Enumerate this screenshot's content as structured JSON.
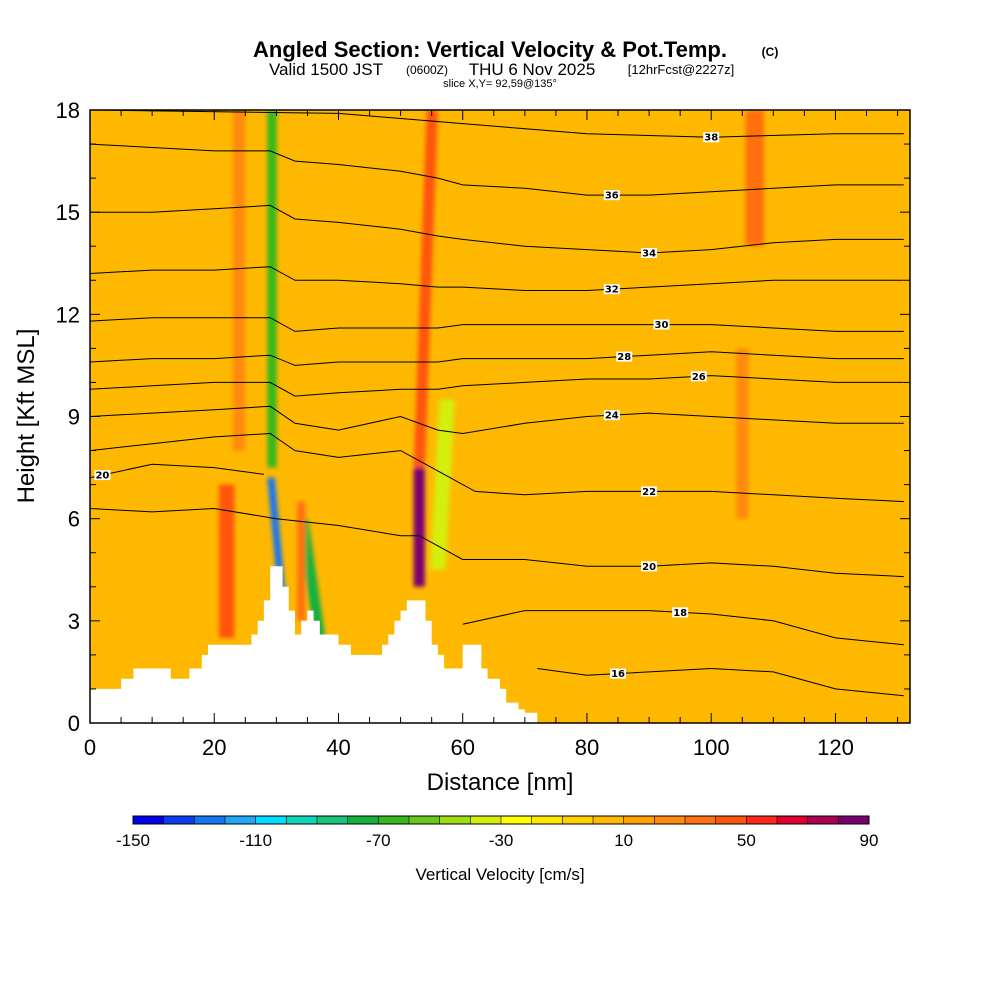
{
  "chart_data": {
    "type": "heatmap",
    "title": "Angled Section: Vertical Velocity & Pot.Temp.",
    "title_units": "(C)",
    "subtitle_valid": "Valid 1500 JST",
    "subtitle_utc": "(0600Z)",
    "subtitle_date": "THU 6 Nov 2025",
    "subtitle_fcst": "[12hrFcst@2227z]",
    "slice_info": "slice X,Y= 92,59@135°",
    "xlabel": "Distance [nm]",
    "ylabel": "Height [Kft MSL]",
    "xlim": [
      0,
      132
    ],
    "ylim": [
      0,
      18
    ],
    "x_ticks": [
      0,
      20,
      40,
      60,
      80,
      100,
      120
    ],
    "y_ticks": [
      0,
      3,
      6,
      9,
      12,
      15,
      18
    ],
    "background_velocity_cms": 0,
    "terrain_profile": {
      "x": [
        0,
        5,
        7,
        9,
        12,
        13,
        15,
        16,
        18,
        19,
        21,
        26,
        27,
        28,
        29,
        31,
        32,
        33,
        34,
        35,
        36,
        37,
        38,
        40,
        42,
        44,
        46,
        47,
        48,
        49,
        50,
        51,
        53,
        54,
        55,
        56,
        57,
        58,
        60,
        61,
        63,
        64,
        66,
        67,
        69,
        70,
        71,
        72
      ],
      "h": [
        1.0,
        1.3,
        1.6,
        1.6,
        1.6,
        1.3,
        1.3,
        1.6,
        2.0,
        2.3,
        2.3,
        2.6,
        3.0,
        3.6,
        4.6,
        4.0,
        3.3,
        2.6,
        3.0,
        3.3,
        3.0,
        2.6,
        2.6,
        2.3,
        2.0,
        2.0,
        2.0,
        2.3,
        2.6,
        3.0,
        3.3,
        3.6,
        3.6,
        3.0,
        2.3,
        2.0,
        1.6,
        1.6,
        2.3,
        2.3,
        1.6,
        1.3,
        1.0,
        0.6,
        0.4,
        0.3,
        0.3,
        0.0
      ]
    },
    "vertical_velocity_features": [
      {
        "x": 22,
        "y0": 2.5,
        "y1": 7,
        "width": 2.5,
        "value": 45
      },
      {
        "x": 24,
        "y0": 8,
        "y1": 18,
        "width": 2.0,
        "value": 25
      },
      {
        "x": 29.3,
        "y0": 7.5,
        "y1": 18,
        "width": 1.5,
        "value": -70,
        "tilt": 0.0
      },
      {
        "x": 31,
        "y0": 3.5,
        "y1": 7.2,
        "width": 1.2,
        "value": -125,
        "tilt": -0.5
      },
      {
        "x": 37,
        "y0": 2.5,
        "y1": 6.0,
        "width": 1.8,
        "value": -80,
        "tilt": -0.8
      },
      {
        "x": 34,
        "y0": 3.0,
        "y1": 6.5,
        "width": 1.3,
        "value": 30
      },
      {
        "x": 53,
        "y0": 4.0,
        "y1": 7.5,
        "width": 1.8,
        "value": 85
      },
      {
        "x": 53,
        "y0": 7.5,
        "y1": 18,
        "width": 1.8,
        "value": 40,
        "tilt": 0.2
      },
      {
        "x": 56,
        "y0": 4.5,
        "y1": 9.5,
        "width": 2.5,
        "value": -35,
        "tilt": 0.3
      },
      {
        "x": 107,
        "y0": 14,
        "y1": 18,
        "width": 3.0,
        "value": 30
      },
      {
        "x": 105,
        "y0": 6,
        "y1": 11,
        "width": 2.0,
        "value": 20
      }
    ],
    "isentropes": [
      {
        "label": "16",
        "label_x": 85,
        "pts": [
          [
            72,
            1.6
          ],
          [
            80,
            1.4
          ],
          [
            90,
            1.5
          ],
          [
            100,
            1.6
          ],
          [
            110,
            1.5
          ],
          [
            120,
            1.0
          ],
          [
            131,
            0.8
          ]
        ]
      },
      {
        "label": "18",
        "label_x": 95,
        "pts": [
          [
            60,
            2.9
          ],
          [
            70,
            3.3
          ],
          [
            80,
            3.3
          ],
          [
            90,
            3.3
          ],
          [
            100,
            3.2
          ],
          [
            110,
            3.0
          ],
          [
            120,
            2.5
          ],
          [
            131,
            2.3
          ]
        ]
      },
      {
        "label": "20",
        "label_x": 90,
        "pts": [
          [
            0,
            6.3
          ],
          [
            10,
            6.2
          ],
          [
            20,
            6.3
          ],
          [
            30,
            6.0
          ],
          [
            40,
            5.8
          ],
          [
            50,
            5.5
          ],
          [
            53,
            5.5
          ],
          [
            60,
            4.8
          ],
          [
            70,
            4.8
          ],
          [
            80,
            4.6
          ],
          [
            90,
            4.6
          ],
          [
            100,
            4.7
          ],
          [
            110,
            4.6
          ],
          [
            120,
            4.4
          ],
          [
            131,
            4.3
          ]
        ]
      },
      {
        "label": "20",
        "label_x": 2,
        "pts": [
          [
            0,
            7.2
          ],
          [
            10,
            7.6
          ],
          [
            20,
            7.5
          ],
          [
            28,
            7.3
          ]
        ]
      },
      {
        "label": "22",
        "label_x": 90,
        "pts": [
          [
            0,
            8.0
          ],
          [
            10,
            8.2
          ],
          [
            20,
            8.4
          ],
          [
            29,
            8.5
          ],
          [
            33,
            8.0
          ],
          [
            40,
            7.8
          ],
          [
            50,
            8.0
          ],
          [
            55,
            7.5
          ],
          [
            62,
            6.8
          ],
          [
            70,
            6.7
          ],
          [
            80,
            6.8
          ],
          [
            90,
            6.8
          ],
          [
            100,
            6.8
          ],
          [
            110,
            6.7
          ],
          [
            120,
            6.6
          ],
          [
            131,
            6.5
          ]
        ]
      },
      {
        "label": "24",
        "label_x": 84,
        "pts": [
          [
            0,
            9.0
          ],
          [
            10,
            9.1
          ],
          [
            20,
            9.2
          ],
          [
            29,
            9.3
          ],
          [
            33,
            8.8
          ],
          [
            40,
            8.6
          ],
          [
            50,
            9.0
          ],
          [
            56,
            8.6
          ],
          [
            60,
            8.5
          ],
          [
            70,
            8.8
          ],
          [
            80,
            9.0
          ],
          [
            90,
            9.1
          ],
          [
            100,
            9.0
          ],
          [
            110,
            8.9
          ],
          [
            120,
            8.8
          ],
          [
            131,
            8.8
          ]
        ]
      },
      {
        "label": "26",
        "label_x": 98,
        "pts": [
          [
            0,
            9.8
          ],
          [
            10,
            9.9
          ],
          [
            20,
            10.0
          ],
          [
            29,
            10.0
          ],
          [
            33,
            9.6
          ],
          [
            40,
            9.7
          ],
          [
            50,
            9.8
          ],
          [
            56,
            9.8
          ],
          [
            60,
            9.9
          ],
          [
            70,
            10.0
          ],
          [
            80,
            10.1
          ],
          [
            90,
            10.1
          ],
          [
            100,
            10.2
          ],
          [
            110,
            10.1
          ],
          [
            120,
            10.0
          ],
          [
            131,
            10.0
          ]
        ]
      },
      {
        "label": "28",
        "label_x": 86,
        "pts": [
          [
            0,
            10.6
          ],
          [
            10,
            10.7
          ],
          [
            20,
            10.7
          ],
          [
            29,
            10.8
          ],
          [
            33,
            10.5
          ],
          [
            40,
            10.6
          ],
          [
            50,
            10.6
          ],
          [
            56,
            10.6
          ],
          [
            60,
            10.7
          ],
          [
            70,
            10.7
          ],
          [
            80,
            10.7
          ],
          [
            90,
            10.8
          ],
          [
            100,
            10.9
          ],
          [
            110,
            10.8
          ],
          [
            120,
            10.7
          ],
          [
            131,
            10.7
          ]
        ]
      },
      {
        "label": "30",
        "label_x": 92,
        "pts": [
          [
            0,
            11.8
          ],
          [
            10,
            11.9
          ],
          [
            20,
            11.9
          ],
          [
            29,
            11.9
          ],
          [
            33,
            11.5
          ],
          [
            40,
            11.6
          ],
          [
            50,
            11.6
          ],
          [
            56,
            11.6
          ],
          [
            60,
            11.7
          ],
          [
            70,
            11.7
          ],
          [
            80,
            11.7
          ],
          [
            90,
            11.7
          ],
          [
            100,
            11.7
          ],
          [
            110,
            11.6
          ],
          [
            120,
            11.5
          ],
          [
            131,
            11.5
          ]
        ]
      },
      {
        "label": "32",
        "label_x": 84,
        "pts": [
          [
            0,
            13.2
          ],
          [
            10,
            13.3
          ],
          [
            20,
            13.3
          ],
          [
            29,
            13.4
          ],
          [
            33,
            13.0
          ],
          [
            40,
            13.0
          ],
          [
            50,
            12.9
          ],
          [
            56,
            12.8
          ],
          [
            60,
            12.8
          ],
          [
            70,
            12.7
          ],
          [
            80,
            12.7
          ],
          [
            90,
            12.8
          ],
          [
            100,
            12.9
          ],
          [
            110,
            13.0
          ],
          [
            120,
            13.0
          ],
          [
            131,
            13.0
          ]
        ]
      },
      {
        "label": "34",
        "label_x": 90,
        "pts": [
          [
            0,
            15.0
          ],
          [
            10,
            15.0
          ],
          [
            20,
            15.1
          ],
          [
            29,
            15.2
          ],
          [
            33,
            14.8
          ],
          [
            40,
            14.7
          ],
          [
            50,
            14.5
          ],
          [
            56,
            14.3
          ],
          [
            60,
            14.2
          ],
          [
            70,
            14.0
          ],
          [
            80,
            13.9
          ],
          [
            90,
            13.8
          ],
          [
            100,
            13.9
          ],
          [
            110,
            14.1
          ],
          [
            120,
            14.2
          ],
          [
            131,
            14.2
          ]
        ]
      },
      {
        "label": "36",
        "label_x": 84,
        "pts": [
          [
            0,
            17.0
          ],
          [
            10,
            16.9
          ],
          [
            20,
            16.8
          ],
          [
            29,
            16.8
          ],
          [
            33,
            16.5
          ],
          [
            40,
            16.4
          ],
          [
            50,
            16.2
          ],
          [
            56,
            16.0
          ],
          [
            60,
            15.8
          ],
          [
            70,
            15.7
          ],
          [
            80,
            15.5
          ],
          [
            90,
            15.5
          ],
          [
            100,
            15.6
          ],
          [
            110,
            15.7
          ],
          [
            120,
            15.8
          ],
          [
            131,
            15.8
          ]
        ]
      },
      {
        "label": "38",
        "label_x": 100,
        "pts": [
          [
            0,
            18.0
          ],
          [
            40,
            17.9
          ],
          [
            60,
            17.6
          ],
          [
            80,
            17.3
          ],
          [
            100,
            17.2
          ],
          [
            120,
            17.3
          ],
          [
            131,
            17.3
          ]
        ]
      }
    ],
    "colorbar": {
      "title": "Vertical Velocity [cm/s]",
      "min": -150,
      "max": 90,
      "step": 10,
      "tick_labels": [
        "-150",
        "-110",
        "-70",
        "-30",
        "10",
        "50",
        "90"
      ],
      "colors": [
        "#0000ee",
        "#0a3cf0",
        "#1476f2",
        "#1ea8f5",
        "#00ddff",
        "#10d6b6",
        "#18c47a",
        "#14b03c",
        "#34b81e",
        "#66c81a",
        "#9edc14",
        "#d4ee10",
        "#ffff00",
        "#ffe800",
        "#ffd000",
        "#ffb800",
        "#ffa000",
        "#ff8a10",
        "#ff7010",
        "#ff5410",
        "#ff2818",
        "#dd0030",
        "#aa0050",
        "#7a0070"
      ]
    }
  }
}
